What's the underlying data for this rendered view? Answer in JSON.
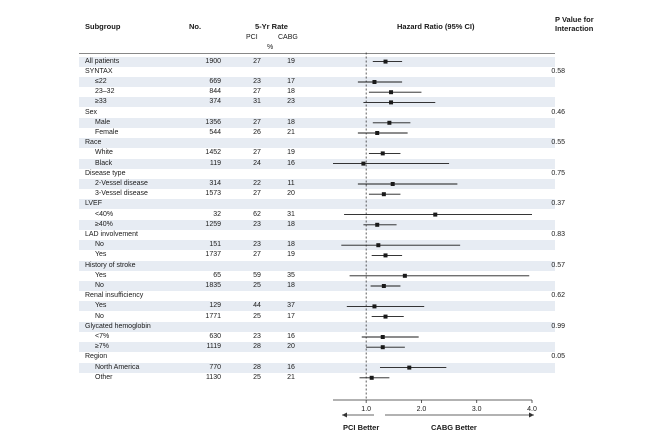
{
  "headers": {
    "subgroup": "Subgroup",
    "no": "No.",
    "rate": "5-Yr Rate",
    "pci": "PCI",
    "cabg": "CABG",
    "percent": "%",
    "hr": "Hazard Ratio (95% CI)",
    "p_line1": "P Value for",
    "p_line2": "Interaction"
  },
  "favors": {
    "left": "PCI Better",
    "right": "CABG Better"
  },
  "colors": {
    "shade": "#e7ecf3",
    "marker": "#1a1a1a"
  },
  "chart_data": {
    "type": "forest",
    "title": "Hazard Ratio (95% CI)",
    "xlabel": "Hazard Ratio",
    "xlim": [
      0.4,
      4.0
    ],
    "ticks": [
      1.0,
      2.0,
      3.0,
      4.0
    ],
    "tick_labels": [
      "1.0",
      "2.0",
      "3.0",
      "4.0"
    ],
    "reference_line": 1.0,
    "rows": [
      {
        "label": "All patients",
        "header": false,
        "indent": false,
        "n": "1900",
        "pci": "27",
        "cabg": "19",
        "p": "",
        "hr": 1.35,
        "lo": 1.12,
        "hi": 1.65
      },
      {
        "label": "SYNTAX",
        "header": true,
        "indent": false,
        "n": "",
        "pci": "",
        "cabg": "",
        "p": "0.58"
      },
      {
        "label": "≤22",
        "header": false,
        "indent": true,
        "n": "669",
        "pci": "23",
        "cabg": "17",
        "p": "",
        "hr": 1.15,
        "lo": 0.85,
        "hi": 1.65
      },
      {
        "label": "23–32",
        "header": false,
        "indent": true,
        "n": "844",
        "pci": "27",
        "cabg": "18",
        "p": "",
        "hr": 1.45,
        "lo": 1.05,
        "hi": 2.0
      },
      {
        "label": "≥33",
        "header": false,
        "indent": true,
        "n": "374",
        "pci": "31",
        "cabg": "23",
        "p": "",
        "hr": 1.45,
        "lo": 0.95,
        "hi": 2.25
      },
      {
        "label": "Sex",
        "header": true,
        "indent": false,
        "n": "",
        "pci": "",
        "cabg": "",
        "p": "0.46"
      },
      {
        "label": "Male",
        "header": false,
        "indent": true,
        "n": "1356",
        "pci": "27",
        "cabg": "18",
        "p": "",
        "hr": 1.42,
        "lo": 1.12,
        "hi": 1.8
      },
      {
        "label": "Female",
        "header": false,
        "indent": true,
        "n": "544",
        "pci": "26",
        "cabg": "21",
        "p": "",
        "hr": 1.2,
        "lo": 0.85,
        "hi": 1.75
      },
      {
        "label": "Race",
        "header": true,
        "indent": false,
        "n": "",
        "pci": "",
        "cabg": "",
        "p": "0.55"
      },
      {
        "label": "White",
        "header": false,
        "indent": true,
        "n": "1452",
        "pci": "27",
        "cabg": "19",
        "p": "",
        "hr": 1.3,
        "lo": 1.05,
        "hi": 1.62
      },
      {
        "label": "Black",
        "header": false,
        "indent": true,
        "n": "119",
        "pci": "24",
        "cabg": "16",
        "p": "",
        "hr": 0.95,
        "lo": 0.4,
        "hi": 2.5
      },
      {
        "label": "Disease type",
        "header": true,
        "indent": false,
        "n": "",
        "pci": "",
        "cabg": "",
        "p": "0.75"
      },
      {
        "label": "2-Vessel disease",
        "header": false,
        "indent": true,
        "n": "314",
        "pci": "22",
        "cabg": "11",
        "p": "",
        "hr": 1.48,
        "lo": 0.85,
        "hi": 2.65
      },
      {
        "label": "3-Vessel disease",
        "header": false,
        "indent": true,
        "n": "1573",
        "pci": "27",
        "cabg": "20",
        "p": "",
        "hr": 1.32,
        "lo": 1.05,
        "hi": 1.62
      },
      {
        "label": "LVEF",
        "header": true,
        "indent": false,
        "n": "",
        "pci": "",
        "cabg": "",
        "p": "0.37"
      },
      {
        "label": "<40%",
        "header": false,
        "indent": true,
        "n": "32",
        "pci": "62",
        "cabg": "31",
        "p": "",
        "hr": 2.25,
        "lo": 0.6,
        "hi": 4.1
      },
      {
        "label": "≥40%",
        "header": false,
        "indent": true,
        "n": "1259",
        "pci": "23",
        "cabg": "18",
        "p": "",
        "hr": 1.2,
        "lo": 0.95,
        "hi": 1.55
      },
      {
        "label": "LAD involvement",
        "header": true,
        "indent": false,
        "n": "",
        "pci": "",
        "cabg": "",
        "p": "0.83"
      },
      {
        "label": "No",
        "header": false,
        "indent": true,
        "n": "151",
        "pci": "23",
        "cabg": "18",
        "p": "",
        "hr": 1.22,
        "lo": 0.55,
        "hi": 2.7
      },
      {
        "label": "Yes",
        "header": false,
        "indent": true,
        "n": "1737",
        "pci": "27",
        "cabg": "19",
        "p": "",
        "hr": 1.35,
        "lo": 1.1,
        "hi": 1.65
      },
      {
        "label": "History of stroke",
        "header": true,
        "indent": false,
        "n": "",
        "pci": "",
        "cabg": "",
        "p": "0.57"
      },
      {
        "label": "Yes",
        "header": false,
        "indent": true,
        "n": "65",
        "pci": "59",
        "cabg": "35",
        "p": "",
        "hr": 1.7,
        "lo": 0.7,
        "hi": 3.95
      },
      {
        "label": "No",
        "header": false,
        "indent": true,
        "n": "1835",
        "pci": "25",
        "cabg": "18",
        "p": "",
        "hr": 1.32,
        "lo": 1.08,
        "hi": 1.62
      },
      {
        "label": "Renal insufficiency",
        "header": true,
        "indent": false,
        "n": "",
        "pci": "",
        "cabg": "",
        "p": "0.62"
      },
      {
        "label": "Yes",
        "header": false,
        "indent": true,
        "n": "129",
        "pci": "44",
        "cabg": "37",
        "p": "",
        "hr": 1.15,
        "lo": 0.65,
        "hi": 2.05
      },
      {
        "label": "No",
        "header": false,
        "indent": true,
        "n": "1771",
        "pci": "25",
        "cabg": "17",
        "p": "",
        "hr": 1.35,
        "lo": 1.1,
        "hi": 1.68
      },
      {
        "label": "Glycated hemoglobin",
        "header": true,
        "indent": false,
        "n": "",
        "pci": "",
        "cabg": "",
        "p": "0.99"
      },
      {
        "label": "<7%",
        "header": false,
        "indent": true,
        "n": "630",
        "pci": "23",
        "cabg": "16",
        "p": "",
        "hr": 1.3,
        "lo": 0.92,
        "hi": 1.95
      },
      {
        "label": "≥7%",
        "header": false,
        "indent": true,
        "n": "1119",
        "pci": "28",
        "cabg": "20",
        "p": "",
        "hr": 1.3,
        "lo": 1.0,
        "hi": 1.7
      },
      {
        "label": "Region",
        "header": true,
        "indent": false,
        "n": "",
        "pci": "",
        "cabg": "",
        "p": "0.05"
      },
      {
        "label": "North America",
        "header": false,
        "indent": true,
        "n": "770",
        "pci": "28",
        "cabg": "16",
        "p": "",
        "hr": 1.78,
        "lo": 1.25,
        "hi": 2.45
      },
      {
        "label": "Other",
        "header": false,
        "indent": true,
        "n": "1130",
        "pci": "25",
        "cabg": "21",
        "p": "",
        "hr": 1.1,
        "lo": 0.88,
        "hi": 1.42
      }
    ]
  }
}
